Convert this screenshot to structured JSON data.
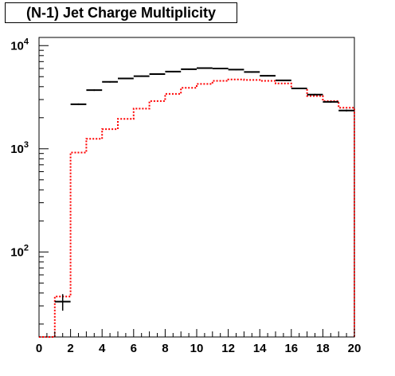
{
  "chart_data": {
    "type": "line",
    "title": "(N-1) Jet Charge Multiplicity",
    "xlabel": "",
    "ylabel": "",
    "xlim": [
      0,
      20
    ],
    "ylim": [
      15,
      12000
    ],
    "yscale": "log",
    "grid": false,
    "legend": "none",
    "x_ticks": [
      "0",
      "2",
      "4",
      "6",
      "8",
      "10",
      "12",
      "14",
      "16",
      "18",
      "20"
    ],
    "y_ticks": [
      {
        "value": 100,
        "base": "10",
        "exp": "2"
      },
      {
        "value": 1000,
        "base": "10",
        "exp": "3"
      },
      {
        "value": 10000,
        "base": "10",
        "exp": "4"
      }
    ],
    "bin_edges": [
      0,
      1,
      2,
      3,
      4,
      5,
      6,
      7,
      8,
      9,
      10,
      11,
      12,
      13,
      14,
      15,
      16,
      17,
      18,
      19,
      20
    ],
    "series": [
      {
        "style": "markers-with-error",
        "color": "#000000",
        "bins": [
          1,
          2,
          3,
          4,
          5,
          6,
          7,
          8,
          9,
          10,
          11,
          12,
          13,
          14,
          15,
          16,
          17,
          18,
          19
        ],
        "values": [
          33,
          2700,
          3700,
          4450,
          4800,
          5050,
          5300,
          5600,
          5900,
          6050,
          6000,
          5850,
          5550,
          5100,
          4600,
          3850,
          3350,
          2850,
          2350
        ],
        "errors": [
          6,
          52,
          61,
          67,
          69,
          71,
          73,
          75,
          77,
          78,
          77,
          76,
          75,
          71,
          68,
          62,
          58,
          53,
          48
        ]
      },
      {
        "style": "step",
        "color": "#ff0000",
        "values": [
          0,
          37,
          920,
          1250,
          1550,
          1950,
          2450,
          2900,
          3400,
          3900,
          4250,
          4550,
          4700,
          4650,
          4550,
          4300,
          3850,
          3250,
          2900,
          2500
        ]
      }
    ]
  },
  "title": "(N-1) Jet Charge Multiplicity"
}
